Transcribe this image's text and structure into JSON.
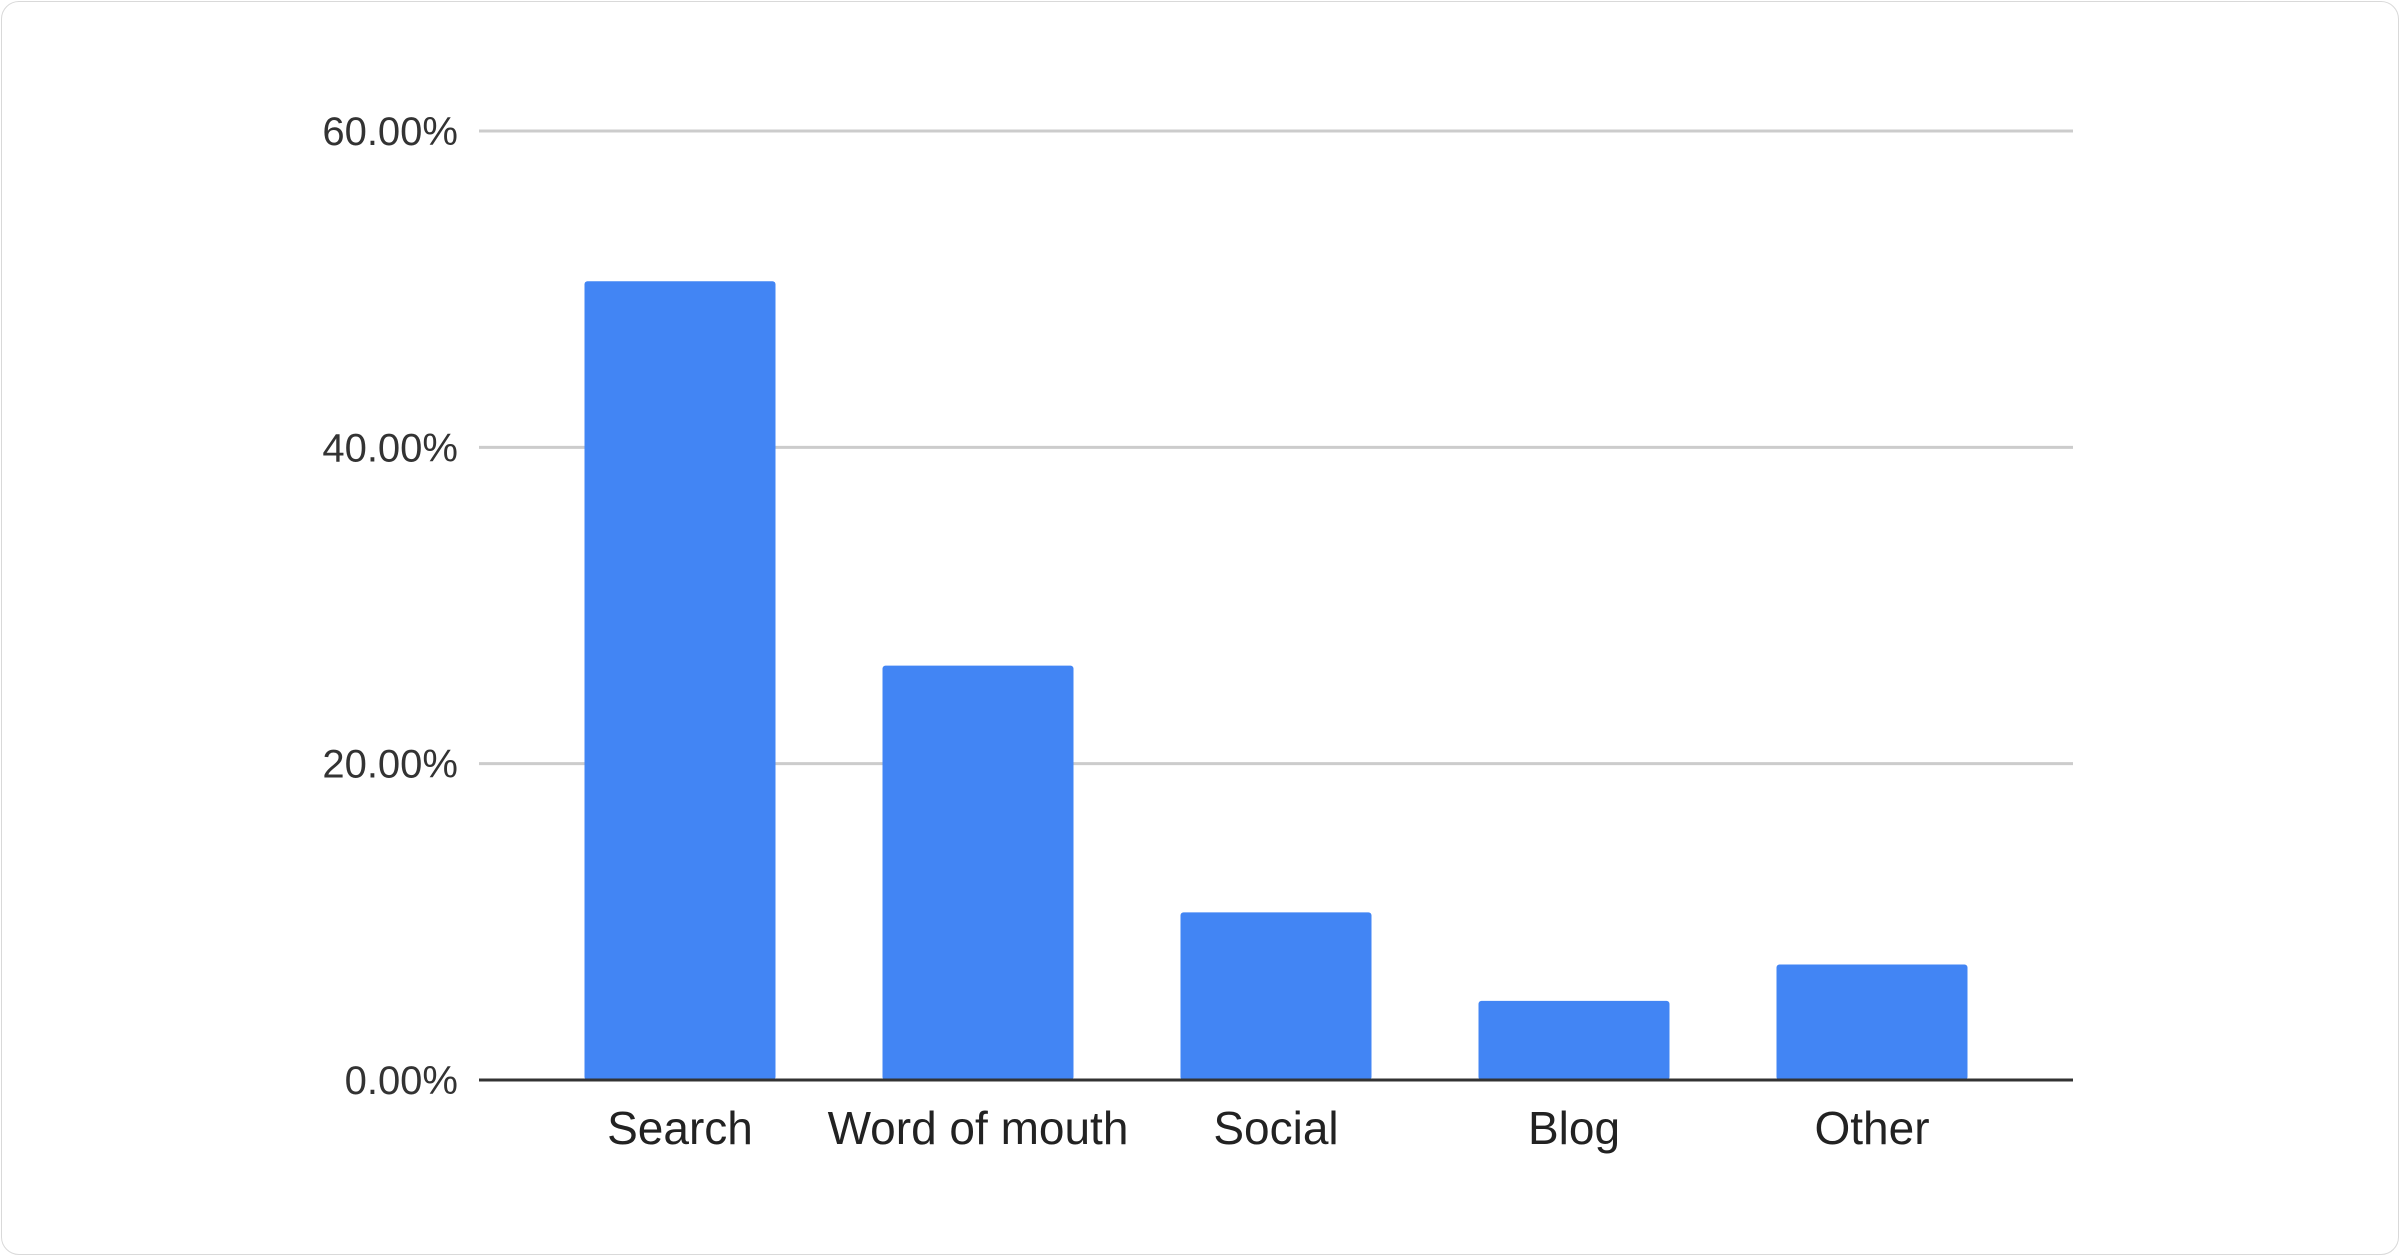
{
  "chart_data": {
    "type": "bar",
    "title": "",
    "xlabel": "",
    "ylabel": "",
    "categories": [
      "Search",
      "Word of mouth",
      "Social",
      "Blog",
      "Other"
    ],
    "values": [
      50.5,
      26.2,
      10.6,
      5.0,
      7.3
    ],
    "ylim": [
      0,
      60
    ],
    "yticks": [
      0,
      20,
      40,
      60
    ],
    "ytick_labels": [
      "0.00%",
      "20.00%",
      "40.00%",
      "60.00%"
    ],
    "grid": true,
    "legend": "none",
    "colors": {
      "bar": "#4285f4",
      "grid": "#cccccc",
      "axis": "#333333"
    }
  }
}
